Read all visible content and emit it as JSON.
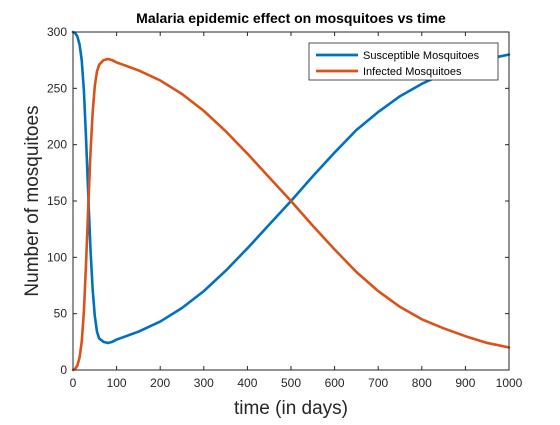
{
  "chart_data": {
    "type": "line",
    "title": "Malaria epidemic effect on mosquitoes vs time",
    "xlabel": "time (in days)",
    "ylabel": "Number of mosquitoes",
    "xlim": [
      0,
      1000
    ],
    "ylim": [
      0,
      300
    ],
    "xticks": [
      0,
      100,
      200,
      300,
      400,
      500,
      600,
      700,
      800,
      900,
      1000
    ],
    "yticks": [
      0,
      50,
      100,
      150,
      200,
      250,
      300
    ],
    "grid": false,
    "legend_position": "top-right",
    "series": [
      {
        "name": "Susceptible Mosquitoes",
        "color": "#0072BD",
        "x": [
          0,
          5,
          10,
          15,
          20,
          25,
          30,
          35,
          40,
          45,
          50,
          55,
          60,
          70,
          80,
          90,
          100,
          150,
          200,
          250,
          300,
          350,
          400,
          450,
          500,
          550,
          600,
          650,
          700,
          750,
          800,
          850,
          900,
          950,
          1000
        ],
        "y": [
          300,
          299,
          296,
          289,
          275,
          248,
          205,
          155,
          108,
          72,
          48,
          34,
          28,
          25,
          24,
          25,
          27,
          34,
          43,
          55,
          70,
          88,
          108,
          129,
          150,
          172,
          193,
          213,
          229,
          243,
          254,
          263,
          270,
          276,
          280
        ]
      },
      {
        "name": "Infected Mosquitoes",
        "color": "#D95319",
        "x": [
          0,
          5,
          10,
          15,
          20,
          25,
          30,
          35,
          40,
          45,
          50,
          55,
          60,
          70,
          80,
          90,
          100,
          150,
          200,
          250,
          300,
          350,
          400,
          450,
          500,
          550,
          600,
          650,
          700,
          750,
          800,
          850,
          900,
          950,
          1000
        ],
        "y": [
          0,
          1,
          4,
          11,
          25,
          52,
          95,
          145,
          192,
          228,
          252,
          265,
          271,
          275,
          276,
          275,
          273,
          266,
          257,
          245,
          230,
          212,
          192,
          171,
          150,
          128,
          107,
          87,
          70,
          56,
          45,
          37,
          30,
          24,
          20
        ]
      }
    ]
  }
}
